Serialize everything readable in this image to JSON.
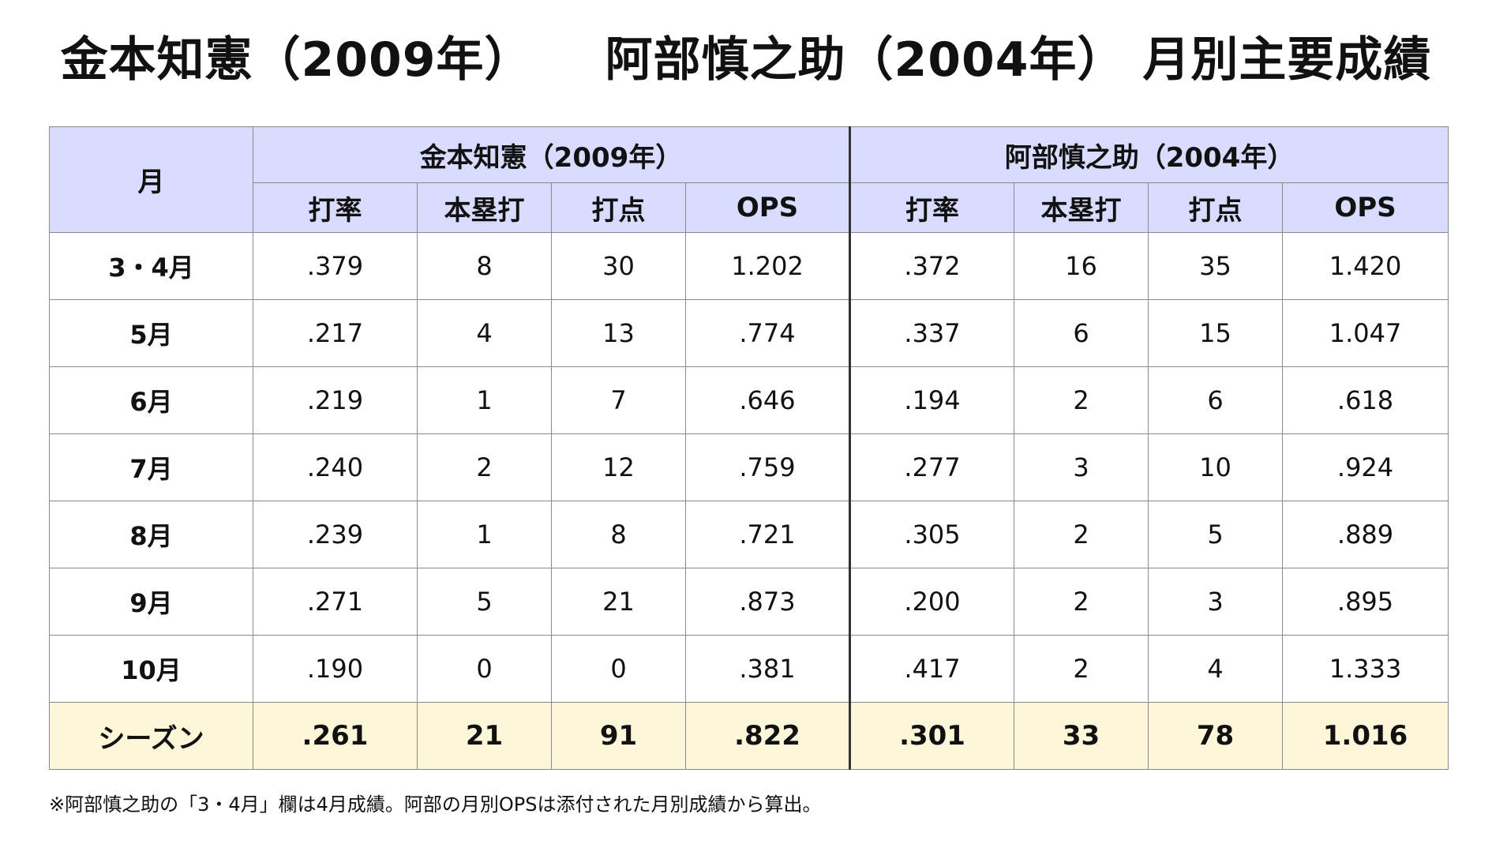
{
  "title": "金本知憲（2009年）　　阿部慎之助（2004年） 月別主要成績",
  "table": {
    "month_header": "月",
    "groups": [
      "金本知憲（2009年）",
      "阿部慎之助（2004年）"
    ],
    "columns": [
      "打率",
      "本塁打",
      "打点",
      "OPS"
    ],
    "rows": [
      {
        "month": "3・4月",
        "values": [
          ".379",
          "8",
          "30",
          "1.202",
          ".372",
          "16",
          "35",
          "1.420"
        ]
      },
      {
        "month": "5月",
        "values": [
          ".217",
          "4",
          "13",
          ".774",
          ".337",
          "6",
          "15",
          "1.047"
        ]
      },
      {
        "month": "6月",
        "values": [
          ".219",
          "1",
          "7",
          ".646",
          ".194",
          "2",
          "6",
          ".618"
        ]
      },
      {
        "month": "7月",
        "values": [
          ".240",
          "2",
          "12",
          ".759",
          ".277",
          "3",
          "10",
          ".924"
        ]
      },
      {
        "month": "8月",
        "values": [
          ".239",
          "1",
          "8",
          ".721",
          ".305",
          "2",
          "5",
          ".889"
        ]
      },
      {
        "month": "9月",
        "values": [
          ".271",
          "5",
          "21",
          ".873",
          ".200",
          "2",
          "3",
          ".895"
        ]
      },
      {
        "month": "10月",
        "values": [
          ".190",
          "0",
          "0",
          ".381",
          ".417",
          "2",
          "4",
          "1.333"
        ]
      }
    ],
    "season": {
      "month": "シーズン",
      "values": [
        ".261",
        "21",
        "91",
        ".822",
        ".301",
        "33",
        "78",
        "1.016"
      ]
    }
  },
  "footnote": "※阿部慎之助の「3・4月」欄は4月成績。阿部の月別OPSは添付された月別成績から算出。",
  "colors": {
    "header_bg": "#d9dbff",
    "season_bg": "#fdf6d8",
    "border": "#8a8a8a",
    "divider": "#333333"
  }
}
